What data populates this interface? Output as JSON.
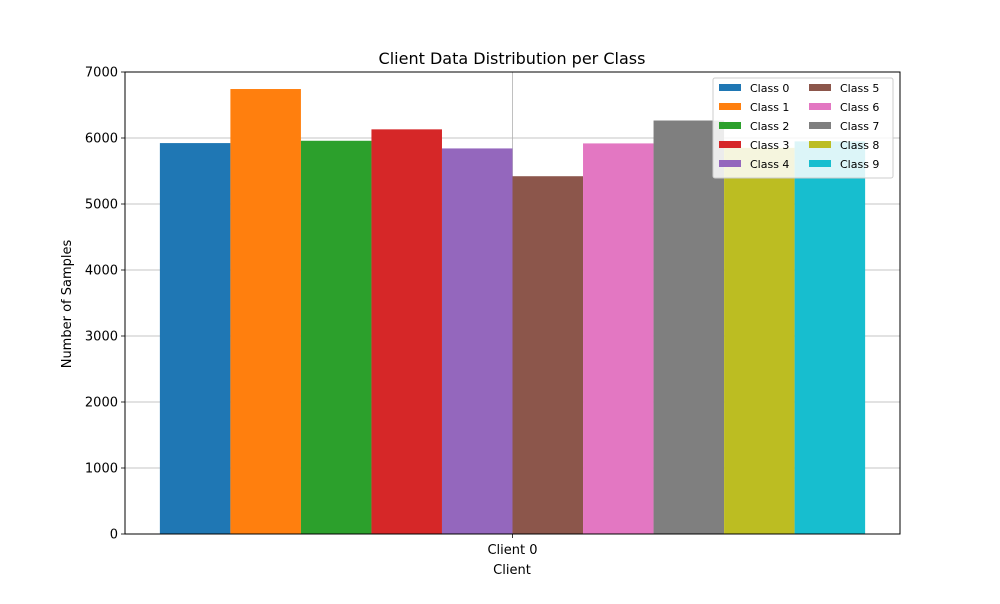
{
  "chart_data": {
    "type": "bar",
    "title": "Client Data Distribution per Class",
    "xlabel": "Client",
    "ylabel": "Number of Samples",
    "categories": [
      "Client 0"
    ],
    "ylim": [
      0,
      7000
    ],
    "yticks": [
      0,
      1000,
      2000,
      3000,
      4000,
      5000,
      6000,
      7000
    ],
    "grid": true,
    "legend": {
      "placement": "top-right",
      "columns": 2
    },
    "series": [
      {
        "name": "Class 0",
        "color": "#1f77b4",
        "values": [
          5923
        ]
      },
      {
        "name": "Class 1",
        "color": "#ff7f0e",
        "values": [
          6742
        ]
      },
      {
        "name": "Class 2",
        "color": "#2ca02c",
        "values": [
          5958
        ]
      },
      {
        "name": "Class 3",
        "color": "#d62728",
        "values": [
          6131
        ]
      },
      {
        "name": "Class 4",
        "color": "#9467bd",
        "values": [
          5842
        ]
      },
      {
        "name": "Class 5",
        "color": "#8c564b",
        "values": [
          5421
        ]
      },
      {
        "name": "Class 6",
        "color": "#e377c2",
        "values": [
          5918
        ]
      },
      {
        "name": "Class 7",
        "color": "#7f7f7f",
        "values": [
          6265
        ]
      },
      {
        "name": "Class 8",
        "color": "#bcbd22",
        "values": [
          5851
        ]
      },
      {
        "name": "Class 9",
        "color": "#17becf",
        "values": [
          5949
        ]
      }
    ]
  }
}
